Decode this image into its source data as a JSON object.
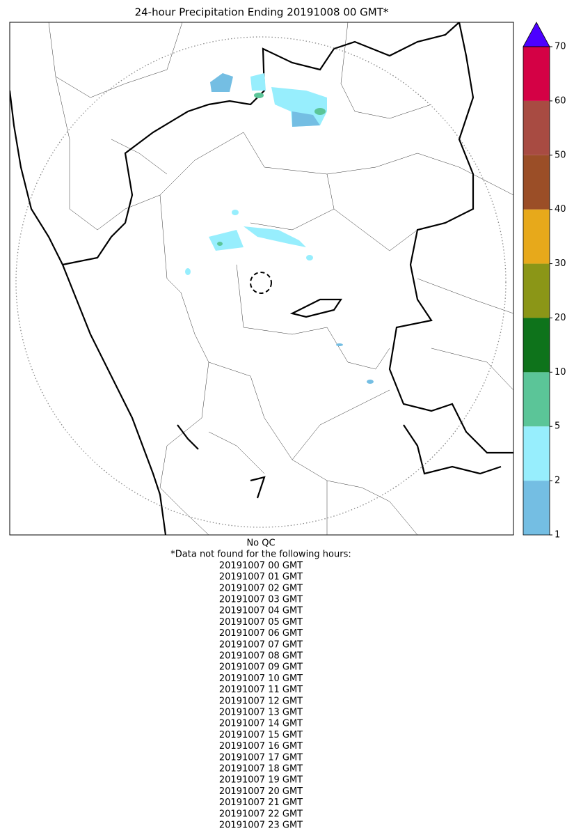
{
  "chart_data": {
    "type": "map",
    "title": "24-hour Precipitation Ending 20191008 00 GMT*",
    "levels": [
      1,
      2,
      5,
      10,
      20,
      30,
      40,
      50,
      60,
      70
    ],
    "colors": [
      "#74bee3",
      "#97eefd",
      "#5bc598",
      "#0e731b",
      "#8b9617",
      "#e7a91b",
      "#9b4e27",
      "#a84b42",
      "#d40145"
    ],
    "over_color": "#4c00ff",
    "footnote": [
      "No QC",
      "*Data not found for the following hours:",
      "20191007 00 GMT",
      "20191007 01 GMT",
      "20191007 02 GMT",
      "20191007 03 GMT",
      "20191007 04 GMT",
      "20191007 05 GMT",
      "20191007 06 GMT",
      "20191007 07 GMT",
      "20191007 08 GMT",
      "20191007 09 GMT",
      "20191007 10 GMT",
      "20191007 11 GMT",
      "20191007 12 GMT",
      "20191007 13 GMT",
      "20191007 14 GMT",
      "20191007 15 GMT",
      "20191007 16 GMT",
      "20191007 17 GMT",
      "20191007 18 GMT",
      "20191007 19 GMT",
      "20191007 20 GMT",
      "20191007 21 GMT",
      "20191007 22 GMT",
      "20191007 23 GMT"
    ]
  }
}
